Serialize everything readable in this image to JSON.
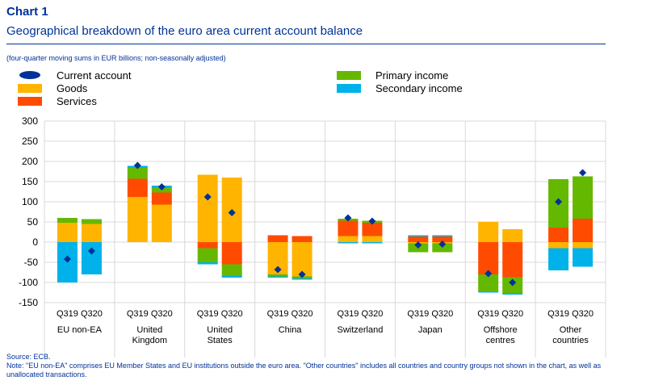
{
  "header": {
    "title": "Chart 1",
    "subtitle": "Geographical breakdown of the euro area current account balance",
    "units_note": "(four-quarter moving sums in EUR billions; non-seasonally adjusted)"
  },
  "footer": {
    "source": "Source: ECB.",
    "note": "Note: \"EU non-EA\" comprises EU Member States and EU institutions outside the euro area. \"Other countries\" includes all countries and country groups not shown in the chart, as well as unallocated transactions."
  },
  "chart_data": {
    "type": "bar",
    "stacked": true,
    "ylim": [
      -150,
      300
    ],
    "yticks": [
      -150,
      -100,
      -50,
      0,
      50,
      100,
      150,
      200,
      250,
      300
    ],
    "grid": true,
    "legend_position": "top",
    "groups": [
      "EU non-EA",
      "United Kingdom",
      "United States",
      "China",
      "Switzerland",
      "Japan",
      "Offshore centres",
      "Other countries"
    ],
    "group_labels": [
      [
        "EU non-EA"
      ],
      [
        "United",
        "Kingdom"
      ],
      [
        "United",
        "States"
      ],
      [
        "China"
      ],
      [
        "Switzerland"
      ],
      [
        "Japan"
      ],
      [
        "Offshore",
        "centres"
      ],
      [
        "Other",
        "countries"
      ]
    ],
    "periods": [
      "Q319",
      "Q320"
    ],
    "legend": [
      {
        "name": "Current account",
        "color": "#003299",
        "marker": "diamond"
      },
      {
        "name": "Goods",
        "color": "#FFB400",
        "marker": "rect"
      },
      {
        "name": "Services",
        "color": "#FF4B00",
        "marker": "rect"
      },
      {
        "name": "Primary income",
        "color": "#65B800",
        "marker": "rect"
      },
      {
        "name": "Secondary income",
        "color": "#00B1EA",
        "marker": "rect"
      }
    ],
    "series": [
      {
        "name": "Goods",
        "color": "#FFB400",
        "values": [
          [
            48,
            45
          ],
          [
            112,
            93
          ],
          [
            167,
            160
          ],
          [
            -80,
            -85
          ],
          [
            15,
            15
          ],
          [
            -3,
            -3
          ],
          [
            50,
            32
          ],
          [
            -15,
            -15
          ]
        ]
      },
      {
        "name": "Services",
        "color": "#FF4B00",
        "values": [
          [
            0,
            0
          ],
          [
            45,
            30
          ],
          [
            -15,
            -55
          ],
          [
            17,
            15
          ],
          [
            38,
            33
          ],
          [
            14,
            14
          ],
          [
            -80,
            -87
          ],
          [
            36,
            58
          ]
        ]
      },
      {
        "name": "Primary income",
        "color": "#65B800",
        "values": [
          [
            12,
            12
          ],
          [
            27,
            12
          ],
          [
            -35,
            -28
          ],
          [
            -5,
            -5
          ],
          [
            5,
            5
          ],
          [
            -22,
            -22
          ],
          [
            -42,
            -40
          ],
          [
            120,
            105
          ]
        ]
      },
      {
        "name": "Secondary income",
        "color": "#00B1EA",
        "values": [
          [
            -100,
            -80
          ],
          [
            5,
            5
          ],
          [
            -5,
            -5
          ],
          [
            -3,
            -3
          ],
          [
            -3,
            -3
          ],
          [
            3,
            3
          ],
          [
            -3,
            -3
          ],
          [
            -55,
            -46
          ]
        ]
      },
      {
        "name": "Current account",
        "color": "#003299",
        "type": "point",
        "values": [
          [
            -42,
            -22
          ],
          [
            190,
            137
          ],
          [
            112,
            73
          ],
          [
            -68,
            -80
          ],
          [
            60,
            52
          ],
          [
            -7,
            -5
          ],
          [
            -78,
            -100
          ],
          [
            100,
            172
          ]
        ]
      }
    ]
  }
}
